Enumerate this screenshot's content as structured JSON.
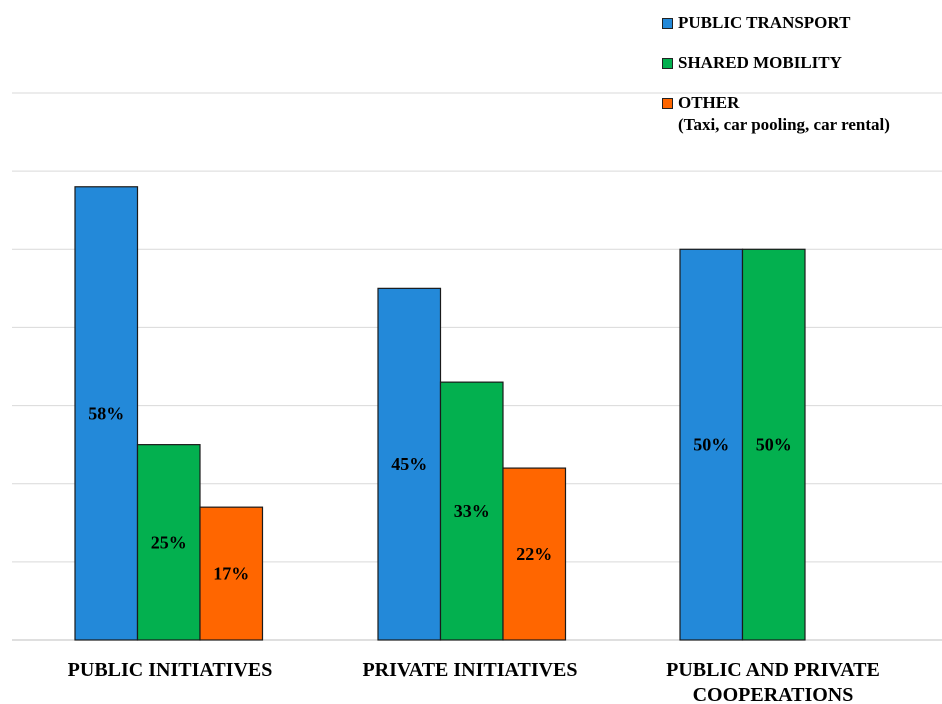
{
  "chart_data": {
    "type": "bar",
    "categories": [
      [
        "PUBLIC INITIATIVES"
      ],
      [
        "PRIVATE INITIATIVES"
      ],
      [
        "PUBLIC AND PRIVATE",
        "COOPERATIONS"
      ]
    ],
    "series": [
      {
        "name": "PUBLIC TRANSPORT",
        "color": "#2389d9",
        "values": [
          58,
          45,
          50
        ],
        "labels": [
          "58%",
          "45%",
          "50%"
        ]
      },
      {
        "name": "SHARED MOBILITY",
        "color": "#03b04f",
        "values": [
          25,
          33,
          50
        ],
        "labels": [
          "25%",
          "33%",
          "50%"
        ]
      },
      {
        "name": "OTHER",
        "note": "(Taxi, car pooling, car rental)",
        "color": "#ff6600",
        "values": [
          17,
          22,
          null
        ],
        "labels": [
          "17%",
          "22%",
          ""
        ]
      }
    ],
    "ylim": [
      0,
      70
    ],
    "grid_step": 10,
    "grid": true,
    "legend_position": "top-right",
    "title": "",
    "xlabel": "",
    "ylabel": ""
  }
}
